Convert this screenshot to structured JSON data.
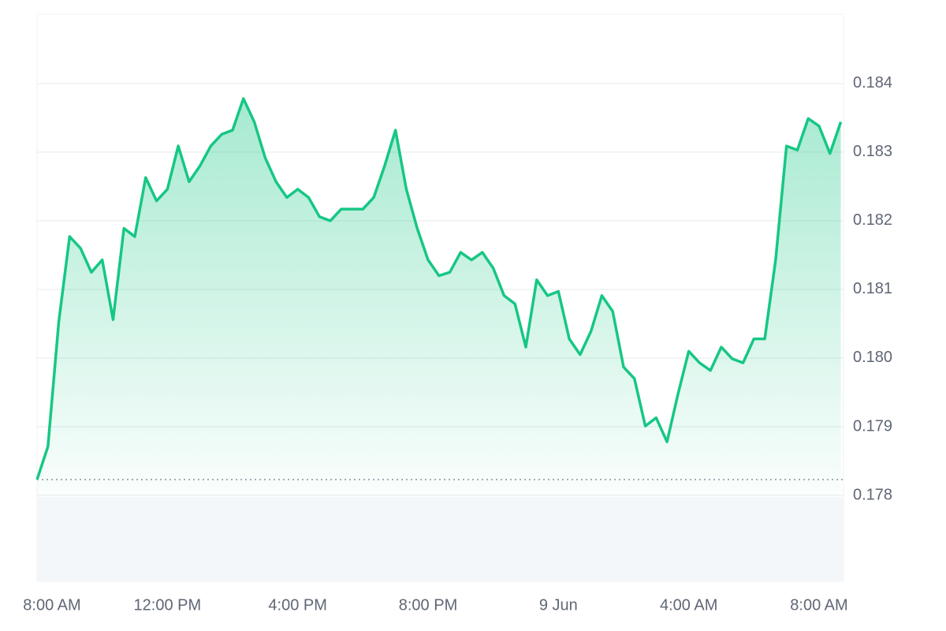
{
  "chart_data": {
    "type": "line",
    "categories": [
      "8:00 AM",
      null,
      null,
      null,
      null,
      null,
      null,
      null,
      null,
      null,
      null,
      null,
      "12:00 PM",
      null,
      null,
      null,
      null,
      null,
      null,
      null,
      null,
      null,
      null,
      null,
      "4:00 PM",
      null,
      null,
      null,
      null,
      null,
      null,
      null,
      null,
      null,
      null,
      null,
      "8:00 PM",
      null,
      null,
      null,
      null,
      null,
      null,
      null,
      null,
      null,
      null,
      null,
      "9 Jun",
      null,
      null,
      null,
      null,
      null,
      null,
      null,
      null,
      null,
      null,
      null,
      "4:00 AM",
      null,
      null,
      null,
      null,
      null,
      null,
      null,
      null,
      null,
      null,
      null,
      "8:00 AM",
      null,
      null
    ],
    "values": [
      0.17823,
      0.17871,
      0.18053,
      0.18177,
      0.1816,
      0.18125,
      0.18143,
      0.18056,
      0.18189,
      0.18177,
      0.18263,
      0.18229,
      0.18246,
      0.18309,
      0.18257,
      0.1828,
      0.18309,
      0.18326,
      0.18332,
      0.18378,
      0.18344,
      0.18292,
      0.18257,
      0.18234,
      0.18246,
      0.18234,
      0.18206,
      0.182,
      0.18217,
      0.18217,
      0.18217,
      0.18234,
      0.1828,
      0.18332,
      0.18246,
      0.18189,
      0.18143,
      0.1812,
      0.18125,
      0.18154,
      0.18143,
      0.18154,
      0.18131,
      0.18091,
      0.18079,
      0.18016,
      0.18114,
      0.18091,
      0.18097,
      0.18028,
      0.18005,
      0.18039,
      0.18091,
      0.18068,
      0.17987,
      0.1797,
      0.17901,
      0.17913,
      0.17878,
      0.17947,
      0.1801,
      0.17993,
      0.17982,
      0.18016,
      0.17999,
      0.17993,
      0.18028,
      0.18028,
      0.18143,
      0.18309,
      0.18303,
      0.18349,
      0.18338,
      0.18298,
      0.18344
    ],
    "color": "#16c784",
    "ylim": [
      0.178,
      0.18501
    ],
    "yticks": [
      {
        "value": 0.178,
        "label": "0.178"
      },
      0.179,
      {
        "value": 0.18,
        "label": "0.180"
      },
      0.181,
      0.182,
      0.183,
      0.184
    ],
    "grid": true
  }
}
